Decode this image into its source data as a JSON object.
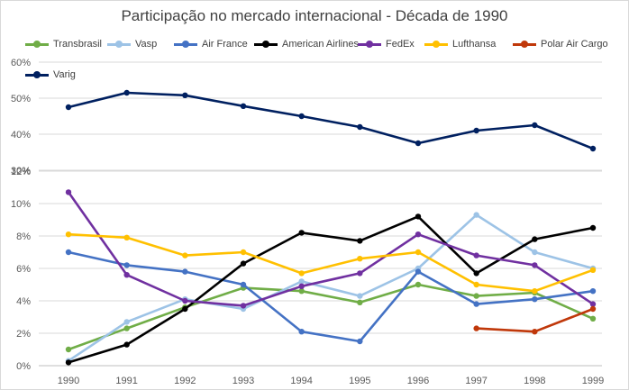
{
  "title": "Participação no mercado internacional - Década de 1990",
  "chart_data": {
    "type": "line",
    "title": "Participação no mercado internacional - Década de 1990",
    "x": [
      "1990",
      "1991",
      "1992",
      "1993",
      "1994",
      "1995",
      "1996",
      "1997",
      "1998",
      "1999"
    ],
    "xlabel": "",
    "ylabel": "",
    "legend_position": "top",
    "grid": true,
    "panels": [
      {
        "name": "upper",
        "ylim": [
          30,
          60
        ],
        "ticks": [
          "30%",
          "40%",
          "50%",
          "60%"
        ],
        "tick_values": [
          30,
          40,
          50,
          60
        ],
        "series": [
          {
            "name": "Varig",
            "color": "#002060",
            "values": [
              47.5,
              51.5,
              50.8,
              47.8,
              45.0,
              42.0,
              37.5,
              41.0,
              42.5,
              36.0
            ]
          }
        ]
      },
      {
        "name": "lower",
        "ylim": [
          0,
          12
        ],
        "ticks": [
          "0%",
          "2%",
          "4%",
          "6%",
          "8%",
          "10%",
          "12%"
        ],
        "tick_values": [
          0,
          2,
          4,
          6,
          8,
          10,
          12
        ],
        "series": [
          {
            "name": "Transbrasil",
            "color": "#70ad47",
            "values": [
              1.0,
              2.3,
              3.6,
              4.8,
              4.6,
              3.9,
              5.0,
              4.3,
              4.5,
              2.9
            ]
          },
          {
            "name": "Vasp",
            "color": "#9dc3e6",
            "values": [
              0.3,
              2.7,
              4.1,
              3.5,
              5.2,
              4.3,
              6.0,
              9.3,
              7.0,
              6.0
            ]
          },
          {
            "name": "Air France",
            "color": "#4472c4",
            "values": [
              7.0,
              6.2,
              5.8,
              5.0,
              2.1,
              1.5,
              5.8,
              3.8,
              4.1,
              4.6
            ]
          },
          {
            "name": "American Airlines",
            "color": "#000000",
            "values": [
              0.2,
              1.3,
              3.5,
              6.3,
              8.2,
              7.7,
              9.2,
              5.7,
              7.8,
              8.5
            ]
          },
          {
            "name": "FedEx",
            "color": "#7030a0",
            "values": [
              10.7,
              5.6,
              4.0,
              3.7,
              4.9,
              5.7,
              8.1,
              6.8,
              6.2,
              3.8
            ]
          },
          {
            "name": "Lufthansa",
            "color": "#ffc000",
            "values": [
              8.1,
              7.9,
              6.8,
              7.0,
              5.7,
              6.6,
              7.0,
              5.0,
              4.6,
              5.9
            ]
          },
          {
            "name": "Polar Air Cargo",
            "color": "#c0380a",
            "values": [
              null,
              null,
              null,
              null,
              null,
              null,
              null,
              2.3,
              2.1,
              3.5
            ]
          }
        ]
      }
    ]
  }
}
